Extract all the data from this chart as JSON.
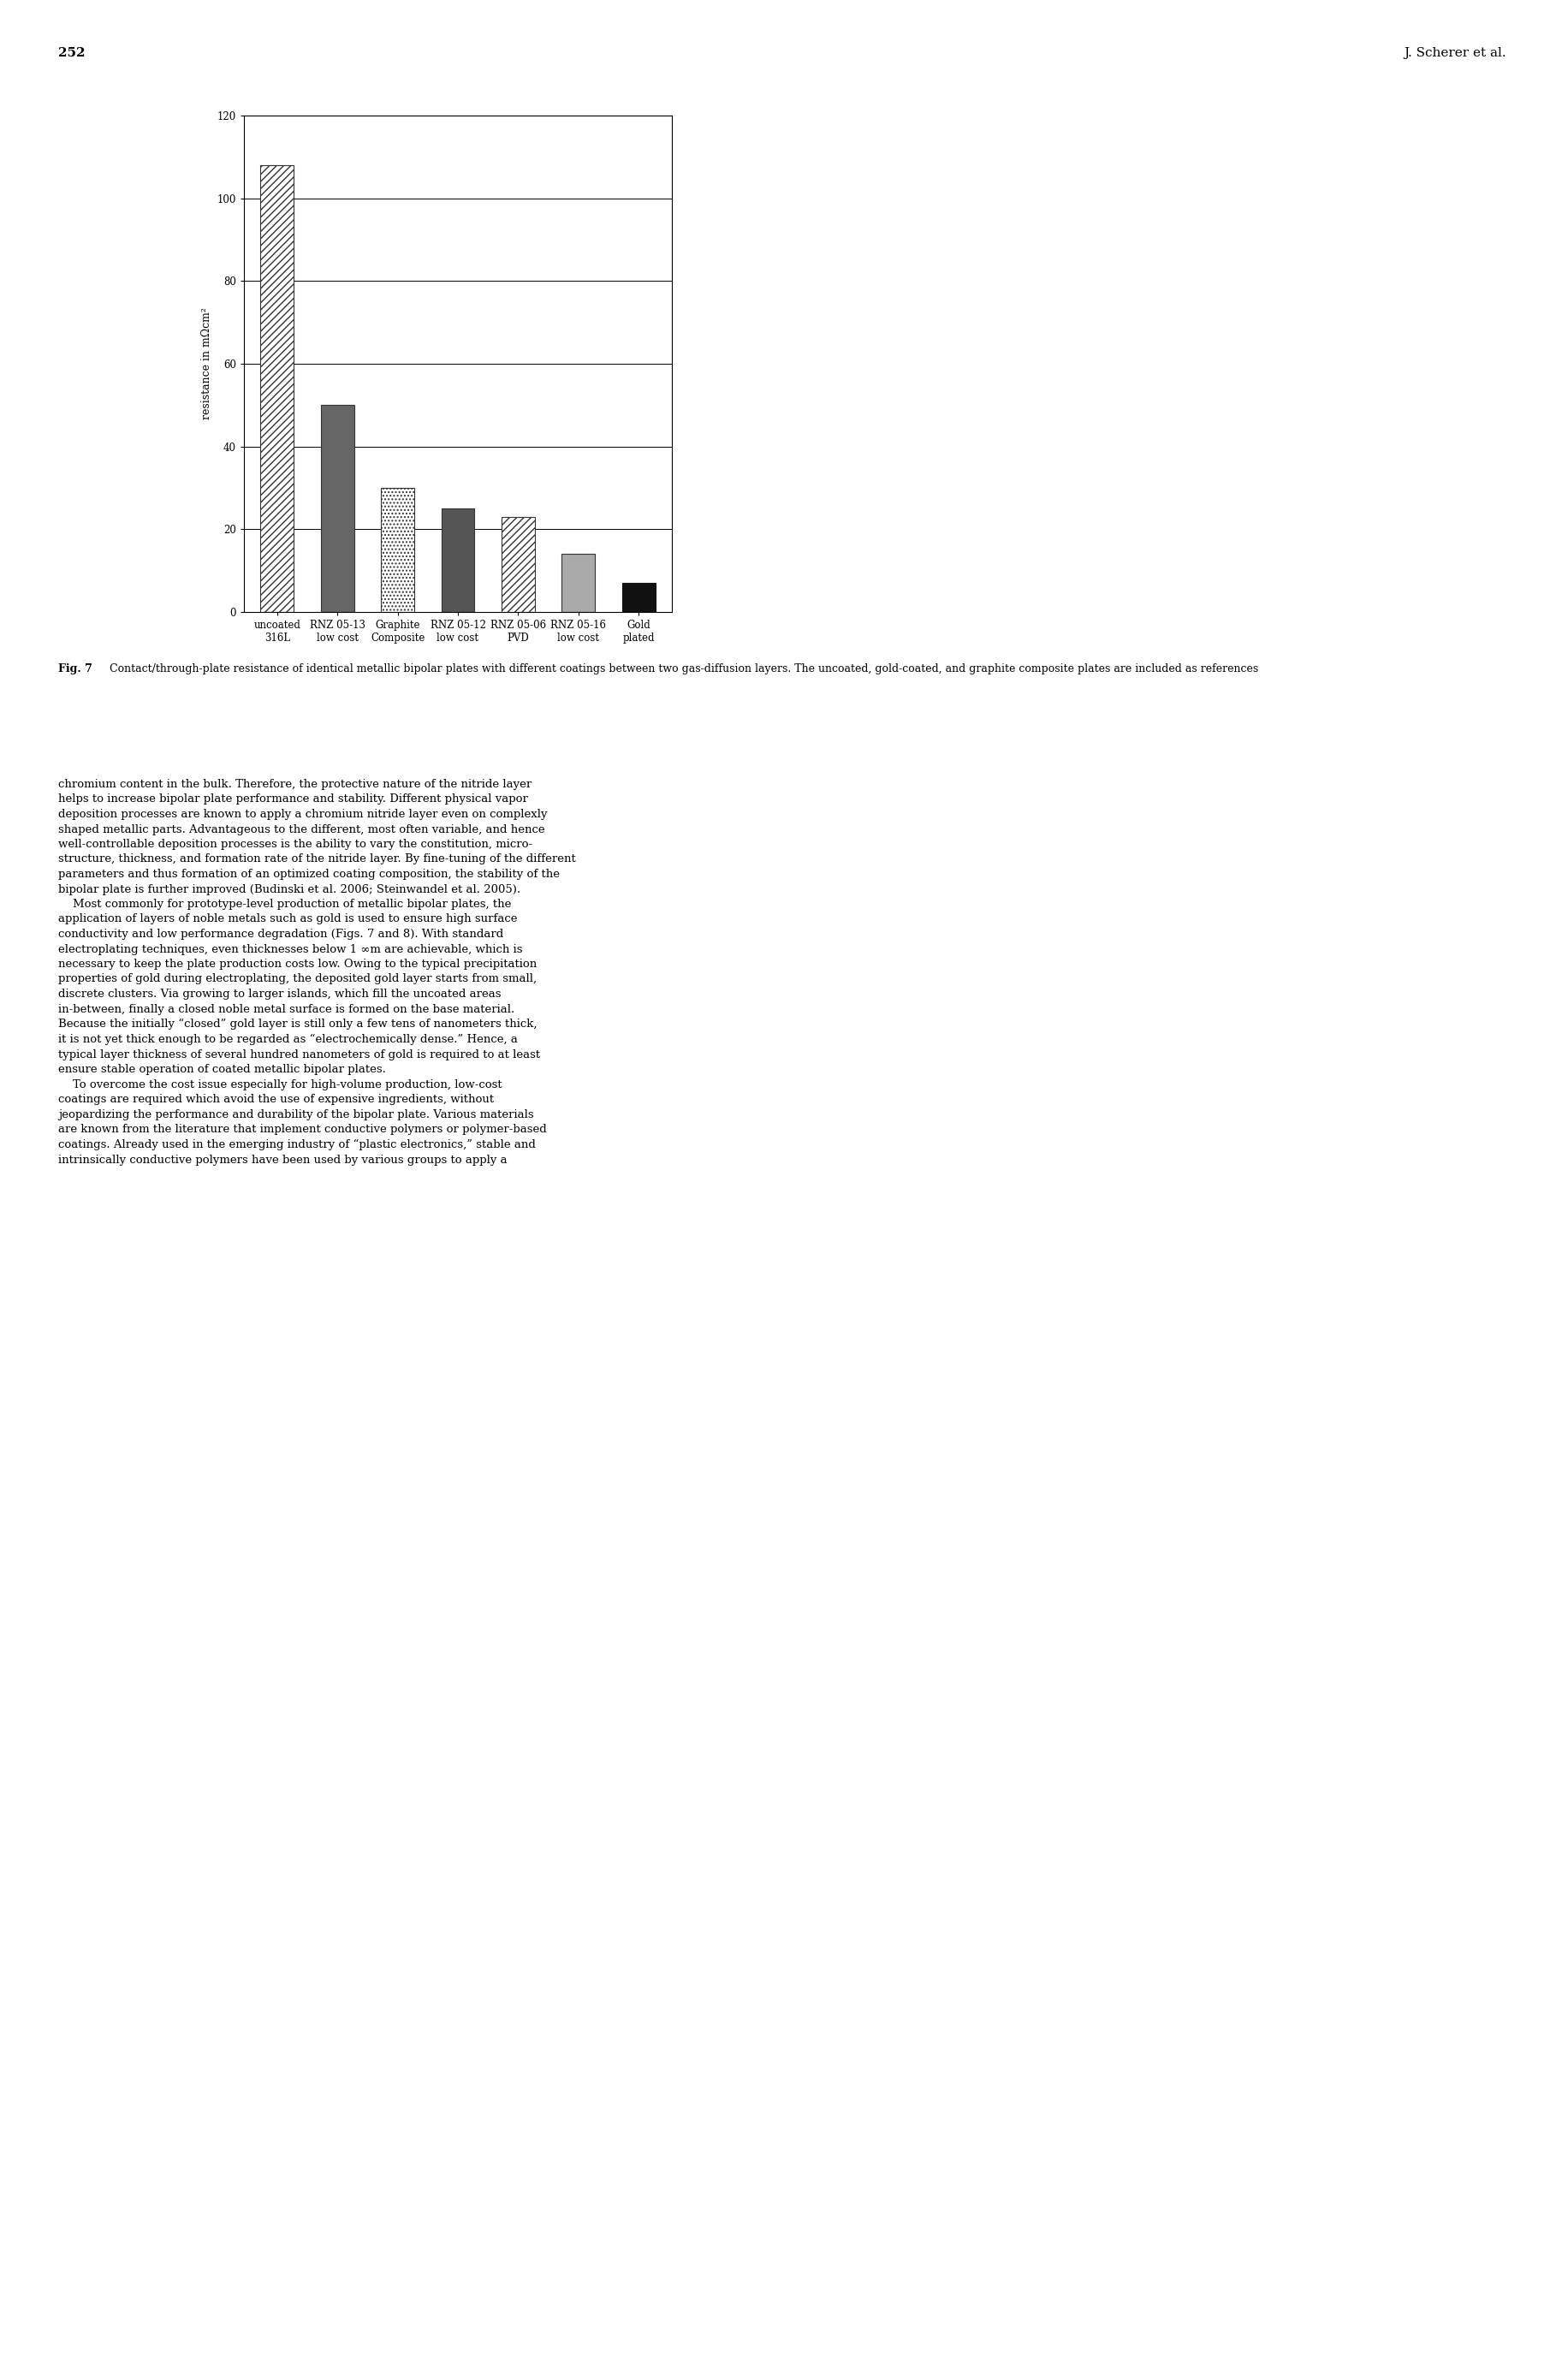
{
  "categories": [
    "uncoated\n316L",
    "RNZ 05-13\nlow cost",
    "Graphite\nComposite",
    "RNZ 05-12\nlow cost",
    "RNZ 05-06\nPVD",
    "RNZ 05-16\nlow cost",
    "Gold\nplated"
  ],
  "values": [
    108,
    50,
    30,
    25,
    23,
    14,
    7
  ],
  "bar_facecolors": [
    "white",
    "#666666",
    "white",
    "#555555",
    "white",
    "#aaaaaa",
    "#111111"
  ],
  "bar_edgecolors": [
    "#333333",
    "#333333",
    "#333333",
    "#333333",
    "#333333",
    "#333333",
    "#111111"
  ],
  "bar_hatches": [
    "////",
    "",
    "....",
    "",
    "////",
    "",
    ""
  ],
  "ylabel": "resistance in mΩcm²",
  "ylim": [
    0,
    120
  ],
  "yticks": [
    0,
    20,
    40,
    60,
    80,
    100,
    120
  ],
  "fig_caption_bold": "Fig. 7",
  "fig_caption_text": "  Contact/through-plate resistance of identical metallic bipolar plates with different coatings between two gas-diffusion layers. The uncoated, gold-coated, and graphite composite plates are included as references",
  "page_number": "252",
  "author": "J. Scherer et al.",
  "background_color": "#ffffff",
  "bar_width": 0.55,
  "hatch_density": 6
}
